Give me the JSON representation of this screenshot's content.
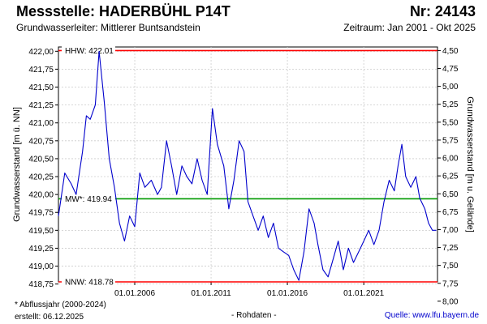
{
  "header": {
    "station": "Messstelle: HADERBÜHL P14T",
    "number": "Nr: 24143",
    "aquifer": "Grundwasserleiter:   Mittlerer Buntsandstein",
    "period": "Zeitraum: Jan 2001 - Okt 2025"
  },
  "footer": {
    "note": "* Abflussjahr (2000-2024)",
    "created": "erstellt:  06.12.2025",
    "center": "- Rohdaten -",
    "source": "Quelle: www.lfu.bayern.de"
  },
  "colors": {
    "series": "#0000cc",
    "limits": "#ff0000",
    "mean": "#009900",
    "grid": "#cccccc"
  },
  "chart_data": {
    "type": "line",
    "ylabel": "Grundwasserstand [m ü. NN]",
    "ylabel_right": "Grundwasserstand [m u. Gelände]",
    "ylim": [
      418.78,
      422.06
    ],
    "yticks": [
      "422,00",
      "421,75",
      "421,50",
      "421,25",
      "421,00",
      "420,75",
      "420,50",
      "420,25",
      "420,00",
      "419,75",
      "419,50",
      "419,25",
      "419,00",
      "418,75"
    ],
    "yticks_right": [
      "4,50",
      "4,75",
      "5,00",
      "5,25",
      "5,50",
      "5,75",
      "6,00",
      "6,25",
      "6,50",
      "6,75",
      "7,00",
      "7,25",
      "7,50",
      "7,75",
      "8,00"
    ],
    "xlim": [
      "2001-01-01",
      "2025-10-31"
    ],
    "xticks": [
      "01.01.2006",
      "01.01.2011",
      "01.01.2016",
      "01.01.2021"
    ],
    "reference_lines": [
      {
        "label": "HHW: 422.01",
        "value": 422.01,
        "role": "limits"
      },
      {
        "label": "MW*: 419.94",
        "value": 419.94,
        "role": "mean"
      },
      {
        "label": "NNW: 418.78",
        "value": 418.78,
        "role": "limits"
      }
    ],
    "series": [
      {
        "x": [
          "2001-01-01",
          "2001-06-01",
          "2001-11-01",
          "2002-03-01",
          "2002-08-01",
          "2002-11-01",
          "2003-02-01",
          "2003-06-01",
          "2003-09-01",
          "2004-01-01",
          "2004-05-01",
          "2004-09-01",
          "2005-01-01",
          "2005-05-01",
          "2005-09-01",
          "2006-01-01",
          "2006-05-01",
          "2006-09-01",
          "2007-02-01",
          "2007-07-01",
          "2007-10-01",
          "2008-02-01",
          "2008-06-01",
          "2008-10-01",
          "2009-02-01",
          "2009-06-01",
          "2009-10-01",
          "2010-02-01",
          "2010-06-01",
          "2010-10-01",
          "2011-02-01",
          "2011-06-01",
          "2011-11-01",
          "2012-03-01",
          "2012-07-01",
          "2012-11-01",
          "2013-03-01",
          "2013-06-01",
          "2013-10-01",
          "2014-02-01",
          "2014-06-01",
          "2014-10-01",
          "2015-02-01",
          "2015-06-01",
          "2015-10-01",
          "2016-02-01",
          "2016-06-01",
          "2016-10-01",
          "2017-02-01",
          "2017-06-01",
          "2017-10-01",
          "2018-01-01",
          "2018-05-01",
          "2018-09-01",
          "2019-01-01",
          "2019-05-01",
          "2019-09-01",
          "2020-01-01",
          "2020-05-01",
          "2020-09-01",
          "2021-01-01",
          "2021-05-01",
          "2021-09-01",
          "2022-01-01",
          "2022-05-01",
          "2022-09-01",
          "2023-01-01",
          "2023-04-01",
          "2023-07-01",
          "2023-10-01",
          "2024-02-01",
          "2024-06-01",
          "2024-09-01",
          "2025-01-01",
          "2025-04-01",
          "2025-07-01",
          "2025-10-01"
        ],
        "y": [
          419.7,
          420.3,
          420.15,
          420.0,
          420.6,
          421.1,
          421.05,
          421.25,
          422.0,
          421.3,
          420.5,
          420.1,
          419.6,
          419.35,
          419.7,
          419.55,
          420.3,
          420.1,
          420.2,
          420.0,
          420.1,
          420.75,
          420.4,
          420.0,
          420.4,
          420.25,
          420.15,
          420.5,
          420.2,
          420.0,
          421.2,
          420.7,
          420.4,
          419.8,
          420.2,
          420.75,
          420.6,
          419.9,
          419.7,
          419.5,
          419.7,
          419.4,
          419.6,
          419.25,
          419.2,
          419.15,
          418.95,
          418.8,
          419.2,
          419.8,
          419.6,
          419.3,
          418.95,
          418.85,
          419.1,
          419.35,
          418.95,
          419.25,
          419.05,
          419.2,
          419.35,
          419.5,
          419.3,
          419.5,
          419.9,
          420.2,
          420.05,
          420.4,
          420.7,
          420.25,
          420.1,
          420.25,
          419.95,
          419.8,
          419.6,
          419.5,
          419.5
        ]
      }
    ]
  }
}
